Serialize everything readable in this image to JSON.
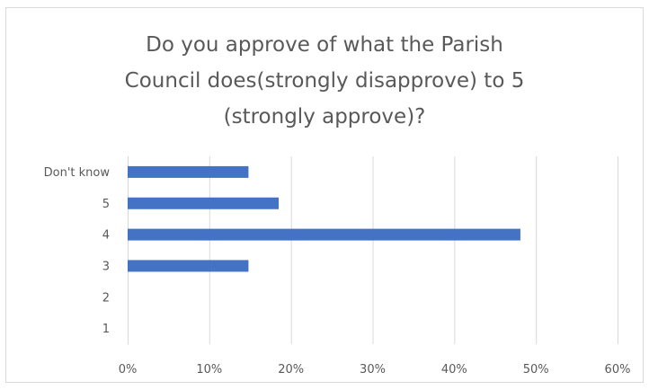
{
  "chart_data": {
    "type": "bar",
    "orientation": "horizontal",
    "title_lines": [
      "Do you approve of what the Parish",
      "Council does(strongly disapprove) to 5",
      "(strongly approve)?"
    ],
    "categories": [
      "Don't know",
      "5",
      "4",
      "3",
      "2",
      "1"
    ],
    "values": [
      0.148,
      0.185,
      0.481,
      0.148,
      0,
      0
    ],
    "xlim": [
      0,
      0.6
    ],
    "x_ticks": [
      0,
      0.1,
      0.2,
      0.3,
      0.4,
      0.5,
      0.6
    ],
    "x_tick_labels": [
      "0%",
      "10%",
      "20%",
      "30%",
      "40%",
      "50%",
      "60%"
    ],
    "grid": true,
    "bar_color": "#4472C4",
    "grid_color": "#d9d9d9",
    "legend": "none"
  }
}
